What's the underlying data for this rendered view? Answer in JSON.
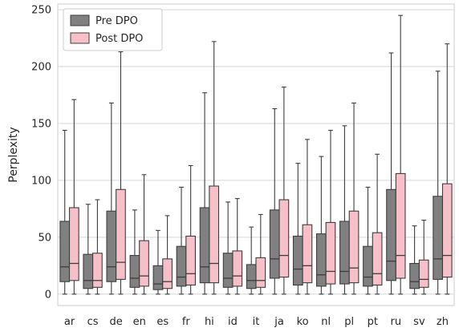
{
  "chart_data": {
    "type": "boxplot",
    "title": "",
    "xlabel": "",
    "ylabel": "Perplexity",
    "ylim": [
      -10,
      255
    ],
    "yticks": [
      0,
      50,
      100,
      150,
      200,
      250
    ],
    "grid": true,
    "legend_position": "top-left",
    "categories": [
      "ar",
      "cs",
      "de",
      "en",
      "es",
      "fr",
      "hi",
      "id",
      "it",
      "ja",
      "ko",
      "nl",
      "pl",
      "pt",
      "ru",
      "sv",
      "zh"
    ],
    "series": [
      {
        "name": "Pre DPO",
        "color": "#808080",
        "boxes": [
          {
            "whislo": 0,
            "q1": 11,
            "med": 24,
            "q3": 64,
            "whishi": 144
          },
          {
            "whislo": 0,
            "q1": 5,
            "med": 12,
            "q3": 35,
            "whishi": 79
          },
          {
            "whislo": 0,
            "q1": 11,
            "med": 24,
            "q3": 73,
            "whishi": 168
          },
          {
            "whislo": 0,
            "q1": 6,
            "med": 14,
            "q3": 34,
            "whishi": 74
          },
          {
            "whislo": 0,
            "q1": 4,
            "med": 9,
            "q3": 25,
            "whishi": 56
          },
          {
            "whislo": 0,
            "q1": 7,
            "med": 15,
            "q3": 42,
            "whishi": 94
          },
          {
            "whislo": 0,
            "q1": 10,
            "med": 24,
            "q3": 76,
            "whishi": 177
          },
          {
            "whislo": 0,
            "q1": 6,
            "med": 14,
            "q3": 36,
            "whishi": 81
          },
          {
            "whislo": 0,
            "q1": 5,
            "med": 12,
            "q3": 26,
            "whishi": 59
          },
          {
            "whislo": 0,
            "q1": 14,
            "med": 31,
            "q3": 74,
            "whishi": 163
          },
          {
            "whislo": 0,
            "q1": 8,
            "med": 22,
            "q3": 51,
            "whishi": 115
          },
          {
            "whislo": 0,
            "q1": 7,
            "med": 17,
            "q3": 53,
            "whishi": 121
          },
          {
            "whislo": 0,
            "q1": 9,
            "med": 20,
            "q3": 64,
            "whishi": 148
          },
          {
            "whislo": 0,
            "q1": 7,
            "med": 15,
            "q3": 42,
            "whishi": 94
          },
          {
            "whislo": 0,
            "q1": 12,
            "med": 29,
            "q3": 92,
            "whishi": 212
          },
          {
            "whislo": 0,
            "q1": 5,
            "med": 11,
            "q3": 27,
            "whishi": 60
          },
          {
            "whislo": 0,
            "q1": 13,
            "med": 31,
            "q3": 86,
            "whishi": 196
          }
        ]
      },
      {
        "name": "Post DPO",
        "color": "#f7c0c8",
        "boxes": [
          {
            "whislo": 0,
            "q1": 12,
            "med": 27,
            "q3": 76,
            "whishi": 171
          },
          {
            "whislo": 0,
            "q1": 6,
            "med": 12,
            "q3": 36,
            "whishi": 83
          },
          {
            "whislo": 0,
            "q1": 13,
            "med": 28,
            "q3": 92,
            "whishi": 213
          },
          {
            "whislo": 0,
            "q1": 7,
            "med": 16,
            "q3": 47,
            "whishi": 105
          },
          {
            "whislo": 0,
            "q1": 5,
            "med": 11,
            "q3": 31,
            "whishi": 69
          },
          {
            "whislo": 0,
            "q1": 8,
            "med": 18,
            "q3": 51,
            "whishi": 113
          },
          {
            "whislo": 0,
            "q1": 10,
            "med": 27,
            "q3": 95,
            "whishi": 222
          },
          {
            "whislo": 0,
            "q1": 7,
            "med": 16,
            "q3": 38,
            "whishi": 84
          },
          {
            "whislo": 0,
            "q1": 6,
            "med": 12,
            "q3": 32,
            "whishi": 70
          },
          {
            "whislo": 0,
            "q1": 15,
            "med": 34,
            "q3": 83,
            "whishi": 182
          },
          {
            "whislo": 0,
            "q1": 10,
            "med": 25,
            "q3": 61,
            "whishi": 136
          },
          {
            "whislo": 0,
            "q1": 9,
            "med": 20,
            "q3": 63,
            "whishi": 144
          },
          {
            "whislo": 0,
            "q1": 10,
            "med": 23,
            "q3": 73,
            "whishi": 168
          },
          {
            "whislo": 0,
            "q1": 8,
            "med": 18,
            "q3": 54,
            "whishi": 123
          },
          {
            "whislo": 0,
            "q1": 14,
            "med": 34,
            "q3": 106,
            "whishi": 245
          },
          {
            "whislo": 0,
            "q1": 6,
            "med": 13,
            "q3": 30,
            "whishi": 65
          },
          {
            "whislo": 0,
            "q1": 15,
            "med": 34,
            "q3": 97,
            "whishi": 220
          }
        ]
      }
    ]
  }
}
